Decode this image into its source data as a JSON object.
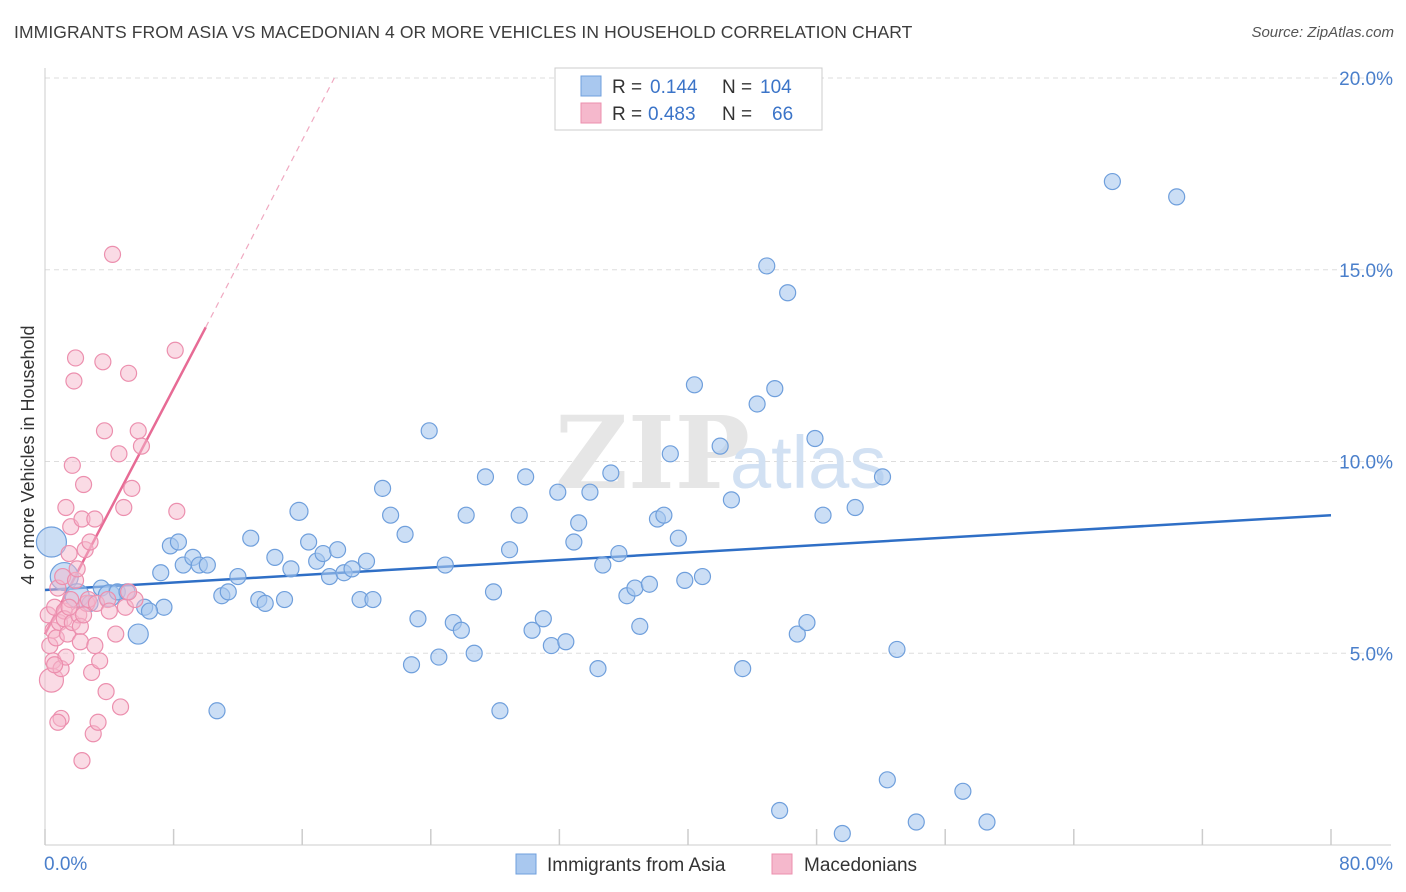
{
  "title": "IMMIGRANTS FROM ASIA VS MACEDONIAN 4 OR MORE VEHICLES IN HOUSEHOLD CORRELATION CHART",
  "source": "Source: ZipAtlas.com",
  "watermark": {
    "zip": "ZIP",
    "atlas": "atlas"
  },
  "colors": {
    "blue_fill": "#a9c8ef",
    "blue_stroke": "#6f9fdc",
    "blue_line": "#2f6fc6",
    "pink_fill": "#f5b8cc",
    "pink_stroke": "#ec8fae",
    "pink_line": "#e76b95",
    "grid": "#dddddd",
    "tick_label": "#4a7fcb"
  },
  "legend": {
    "rows": [
      {
        "r_label": "R =",
        "r_value": "0.144",
        "n_label": "N =",
        "n_value": "104",
        "color": "#a9c8ef",
        "stroke": "#6f9fdc"
      },
      {
        "r_label": "R =",
        "r_value": "0.483",
        "n_label": "N =",
        "n_value": "66",
        "color": "#f5b8cc",
        "stroke": "#ec8fae"
      }
    ]
  },
  "chart_data": {
    "type": "scatter",
    "title": "IMMIGRANTS FROM ASIA VS MACEDONIAN 4 OR MORE VEHICLES IN HOUSEHOLD CORRELATION CHART",
    "xlabel": "",
    "ylabel": "4 or more Vehicles in Household",
    "xlim": [
      0,
      80
    ],
    "ylim": [
      0,
      20
    ],
    "x_tick_labels": [
      "0.0%",
      "80.0%"
    ],
    "y_ticks": [
      5,
      10,
      15,
      20
    ],
    "y_tick_labels": [
      "5.0%",
      "10.0%",
      "15.0%",
      "20.0%"
    ],
    "grid": true,
    "legend_position": "top-center",
    "series": [
      {
        "name": "Immigrants from Asia",
        "color": "#a9c8ef",
        "trend": {
          "x0": 0,
          "y0": 6.65,
          "x1": 80,
          "y1": 8.6
        },
        "points": [
          [
            0.4,
            7.9
          ],
          [
            1.2,
            7.0
          ],
          [
            2.0,
            6.5
          ],
          [
            2.8,
            6.3
          ],
          [
            3.5,
            6.7
          ],
          [
            4.0,
            6.5
          ],
          [
            4.5,
            6.6
          ],
          [
            5.1,
            6.6
          ],
          [
            6.2,
            6.2
          ],
          [
            7.2,
            7.1
          ],
          [
            7.4,
            6.2
          ],
          [
            5.8,
            5.5
          ],
          [
            7.8,
            7.8
          ],
          [
            8.3,
            7.9
          ],
          [
            8.6,
            7.3
          ],
          [
            9.2,
            7.5
          ],
          [
            9.6,
            7.3
          ],
          [
            10.1,
            7.3
          ],
          [
            11.0,
            6.5
          ],
          [
            11.4,
            6.6
          ],
          [
            12.0,
            7.0
          ],
          [
            12.8,
            8.0
          ],
          [
            13.3,
            6.4
          ],
          [
            13.7,
            6.3
          ],
          [
            14.3,
            7.5
          ],
          [
            14.9,
            6.4
          ],
          [
            15.3,
            7.2
          ],
          [
            15.8,
            8.7
          ],
          [
            16.4,
            7.9
          ],
          [
            16.9,
            7.4
          ],
          [
            17.3,
            7.6
          ],
          [
            17.7,
            7.0
          ],
          [
            18.2,
            7.7
          ],
          [
            18.6,
            7.1
          ],
          [
            19.1,
            7.2
          ],
          [
            19.6,
            6.4
          ],
          [
            20.0,
            7.4
          ],
          [
            20.4,
            6.4
          ],
          [
            21.0,
            9.3
          ],
          [
            21.5,
            8.6
          ],
          [
            22.4,
            8.1
          ],
          [
            22.8,
            4.7
          ],
          [
            23.2,
            5.9
          ],
          [
            23.9,
            10.8
          ],
          [
            24.5,
            4.9
          ],
          [
            24.9,
            7.3
          ],
          [
            25.4,
            5.8
          ],
          [
            25.9,
            5.6
          ],
          [
            26.2,
            8.6
          ],
          [
            26.7,
            5.0
          ],
          [
            27.4,
            9.6
          ],
          [
            27.9,
            6.6
          ],
          [
            28.3,
            3.5
          ],
          [
            28.9,
            7.7
          ],
          [
            29.5,
            8.6
          ],
          [
            29.9,
            9.6
          ],
          [
            30.3,
            5.6
          ],
          [
            31.0,
            5.9
          ],
          [
            31.5,
            5.2
          ],
          [
            31.9,
            9.2
          ],
          [
            32.4,
            5.3
          ],
          [
            32.9,
            7.9
          ],
          [
            33.2,
            8.4
          ],
          [
            33.9,
            9.2
          ],
          [
            34.4,
            4.6
          ],
          [
            34.7,
            7.3
          ],
          [
            35.2,
            9.7
          ],
          [
            35.7,
            7.6
          ],
          [
            36.2,
            6.5
          ],
          [
            36.7,
            6.7
          ],
          [
            37.0,
            5.7
          ],
          [
            37.6,
            6.8
          ],
          [
            38.1,
            8.5
          ],
          [
            38.5,
            8.6
          ],
          [
            38.9,
            10.2
          ],
          [
            39.4,
            8.0
          ],
          [
            39.8,
            6.9
          ],
          [
            40.4,
            12.0
          ],
          [
            40.9,
            7.0
          ],
          [
            42.0,
            10.4
          ],
          [
            42.7,
            9.0
          ],
          [
            43.4,
            4.6
          ],
          [
            44.3,
            11.5
          ],
          [
            44.9,
            15.1
          ],
          [
            45.4,
            11.9
          ],
          [
            45.7,
            0.9
          ],
          [
            46.2,
            14.4
          ],
          [
            46.8,
            5.5
          ],
          [
            47.4,
            5.8
          ],
          [
            47.9,
            10.6
          ],
          [
            48.4,
            8.6
          ],
          [
            49.6,
            0.3
          ],
          [
            50.4,
            8.8
          ],
          [
            52.1,
            9.6
          ],
          [
            52.4,
            1.7
          ],
          [
            53.0,
            5.1
          ],
          [
            54.2,
            0.6
          ],
          [
            57.1,
            1.4
          ],
          [
            58.6,
            0.6
          ],
          [
            66.4,
            17.3
          ],
          [
            70.4,
            16.9
          ],
          [
            6.5,
            6.1
          ],
          [
            10.7,
            3.5
          ]
        ]
      },
      {
        "name": "Macedonians",
        "color": "#f5b8cc",
        "trend": {
          "x0": 0,
          "y0": 5.5,
          "x1": 10,
          "y1": 13.5,
          "dash_to": [
            18,
            20
          ]
        },
        "points": [
          [
            0.2,
            6.0
          ],
          [
            0.3,
            5.2
          ],
          [
            0.4,
            4.3
          ],
          [
            0.5,
            5.6
          ],
          [
            0.5,
            4.8
          ],
          [
            0.6,
            6.2
          ],
          [
            0.7,
            5.4
          ],
          [
            0.8,
            6.7
          ],
          [
            0.9,
            5.8
          ],
          [
            1.0,
            4.6
          ],
          [
            1.0,
            3.3
          ],
          [
            1.1,
            7.0
          ],
          [
            1.2,
            6.1
          ],
          [
            1.2,
            5.9
          ],
          [
            1.3,
            4.9
          ],
          [
            1.3,
            8.8
          ],
          [
            1.4,
            5.5
          ],
          [
            1.5,
            7.6
          ],
          [
            1.6,
            6.4
          ],
          [
            1.6,
            8.3
          ],
          [
            1.7,
            5.8
          ],
          [
            1.8,
            12.1
          ],
          [
            1.9,
            12.7
          ],
          [
            1.9,
            6.9
          ],
          [
            2.0,
            7.2
          ],
          [
            2.1,
            6.0
          ],
          [
            2.2,
            5.7
          ],
          [
            2.3,
            2.2
          ],
          [
            2.3,
            8.5
          ],
          [
            2.4,
            9.4
          ],
          [
            2.5,
            7.7
          ],
          [
            2.6,
            6.3
          ],
          [
            2.7,
            6.4
          ],
          [
            2.8,
            7.9
          ],
          [
            2.9,
            4.5
          ],
          [
            3.0,
            2.9
          ],
          [
            3.1,
            8.5
          ],
          [
            3.2,
            6.3
          ],
          [
            3.3,
            3.2
          ],
          [
            3.4,
            4.8
          ],
          [
            3.6,
            12.6
          ],
          [
            3.7,
            10.8
          ],
          [
            3.8,
            4.0
          ],
          [
            3.9,
            6.4
          ],
          [
            4.0,
            6.1
          ],
          [
            4.2,
            15.4
          ],
          [
            4.4,
            5.5
          ],
          [
            4.6,
            10.2
          ],
          [
            4.7,
            3.6
          ],
          [
            4.9,
            8.8
          ],
          [
            5.0,
            6.2
          ],
          [
            5.2,
            12.3
          ],
          [
            5.4,
            9.3
          ],
          [
            5.6,
            6.4
          ],
          [
            5.8,
            10.8
          ],
          [
            6.0,
            10.4
          ],
          [
            5.2,
            6.6
          ],
          [
            2.2,
            5.3
          ],
          [
            1.5,
            6.2
          ],
          [
            0.6,
            4.7
          ],
          [
            3.1,
            5.2
          ],
          [
            8.2,
            8.7
          ],
          [
            8.1,
            12.9
          ],
          [
            1.7,
            9.9
          ],
          [
            2.4,
            6.0
          ],
          [
            0.8,
            3.2
          ]
        ]
      }
    ]
  },
  "bottom_legend": [
    {
      "label": "Immigrants from Asia",
      "color": "#a9c8ef",
      "stroke": "#6f9fdc"
    },
    {
      "label": "Macedonians",
      "color": "#f5b8cc",
      "stroke": "#ec8fae"
    }
  ]
}
